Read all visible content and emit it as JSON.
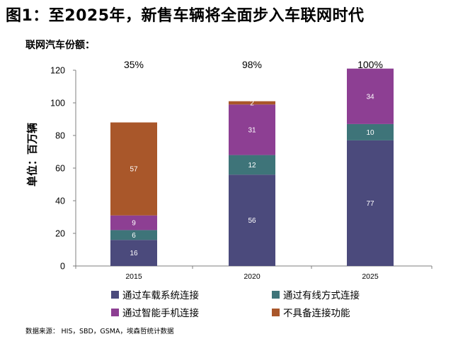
{
  "figure": {
    "title": "图1：至2025年，新售车辆将全面步入车联网时代",
    "subtitle": "联网汽车份额：",
    "source": "数据来源： HIS，SBD，GSMA，埃森哲统计数据"
  },
  "colors": {
    "embedded": "#4b4a7c",
    "tethered": "#3e7479",
    "smartphone": "#8d3f93",
    "none": "#a9572a",
    "axis": "#7f7f7f"
  },
  "chart_data": {
    "type": "bar",
    "stacked": true,
    "title": "联网汽车份额：",
    "xlabel": "",
    "ylabel": "单位：百万辆",
    "ylim": [
      0,
      120
    ],
    "yticks": [
      0,
      20,
      40,
      60,
      80,
      100,
      120
    ],
    "categories": [
      "2015",
      "2020",
      "2025"
    ],
    "series": [
      {
        "name": "通过车载系统连接",
        "color_key": "embedded",
        "values": [
          16,
          56,
          77
        ]
      },
      {
        "name": "通过有线方式连接",
        "color_key": "tethered",
        "values": [
          6,
          12,
          10
        ]
      },
      {
        "name": "通过智能手机连接",
        "color_key": "smartphone",
        "values": [
          9,
          31,
          34
        ]
      },
      {
        "name": "不具备连接功能",
        "color_key": "none",
        "values": [
          57,
          2,
          0
        ]
      }
    ],
    "top_labels": [
      "35%",
      "98%",
      "100%"
    ],
    "grid": false,
    "legend_position": "bottom"
  }
}
